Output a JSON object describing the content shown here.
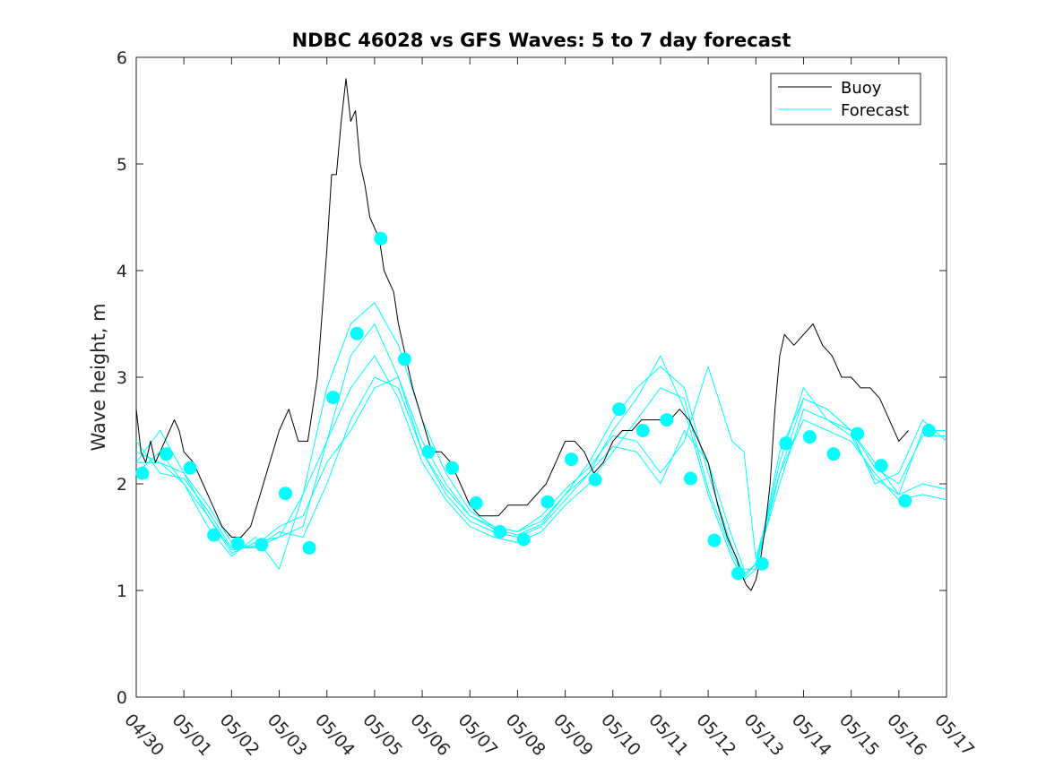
{
  "chart_data": {
    "type": "line",
    "title": "NDBC 46028 vs GFS Waves: 5 to 7 day forecast",
    "xlabel": "",
    "ylabel": "Wave height, m",
    "xlim": [
      0,
      17
    ],
    "ylim": [
      0,
      6
    ],
    "x_tick_labels": [
      "04/30",
      "05/01",
      "05/02",
      "05/03",
      "05/04",
      "05/05",
      "05/06",
      "05/07",
      "05/08",
      "05/09",
      "05/10",
      "05/11",
      "05/12",
      "05/13",
      "05/14",
      "05/15",
      "05/16",
      "05/17"
    ],
    "y_ticks": [
      0,
      1,
      2,
      3,
      4,
      5,
      6
    ],
    "grid": false,
    "legend": {
      "placement": "top-right",
      "entries": [
        "Buoy",
        "Forecast"
      ]
    },
    "colors": {
      "buoy": "#000000",
      "forecast": "#00ffff",
      "axis": "#262626"
    },
    "series": [
      {
        "name": "Buoy",
        "x": [
          0.0,
          0.1,
          0.2,
          0.3,
          0.4,
          0.5,
          0.6,
          0.7,
          0.8,
          0.9,
          1.0,
          1.2,
          1.4,
          1.6,
          1.8,
          2.0,
          2.2,
          2.4,
          2.6,
          2.8,
          3.0,
          3.2,
          3.4,
          3.6,
          3.8,
          4.0,
          4.1,
          4.2,
          4.3,
          4.4,
          4.5,
          4.6,
          4.7,
          4.8,
          4.9,
          5.0,
          5.1,
          5.2,
          5.3,
          5.4,
          5.5,
          5.6,
          5.8,
          6.0,
          6.2,
          6.4,
          6.6,
          6.8,
          7.0,
          7.2,
          7.4,
          7.6,
          7.8,
          8.0,
          8.2,
          8.4,
          8.6,
          8.8,
          9.0,
          9.2,
          9.4,
          9.6,
          9.8,
          10.0,
          10.2,
          10.4,
          10.6,
          10.8,
          11.0,
          11.2,
          11.4,
          11.6,
          11.8,
          12.0,
          12.2,
          12.4,
          12.6,
          12.7,
          12.8,
          12.9,
          13.0,
          13.1,
          13.2,
          13.3,
          13.4,
          13.5,
          13.6,
          13.8,
          14.0,
          14.2,
          14.4,
          14.6,
          14.8,
          15.0,
          15.2,
          15.4,
          15.6,
          15.8,
          16.0,
          16.2
        ],
        "values": [
          2.7,
          2.3,
          2.2,
          2.4,
          2.2,
          2.3,
          2.4,
          2.5,
          2.6,
          2.5,
          2.3,
          2.2,
          2.0,
          1.8,
          1.6,
          1.5,
          1.5,
          1.6,
          1.9,
          2.2,
          2.5,
          2.7,
          2.4,
          2.4,
          3.0,
          4.2,
          4.9,
          4.9,
          5.4,
          5.8,
          5.4,
          5.5,
          5.0,
          4.8,
          4.5,
          4.4,
          4.3,
          4.0,
          3.9,
          3.8,
          3.5,
          3.3,
          2.9,
          2.6,
          2.3,
          2.3,
          2.2,
          2.0,
          1.8,
          1.7,
          1.7,
          1.7,
          1.8,
          1.8,
          1.8,
          1.9,
          2.0,
          2.2,
          2.4,
          2.4,
          2.3,
          2.1,
          2.2,
          2.4,
          2.5,
          2.5,
          2.6,
          2.6,
          2.6,
          2.6,
          2.7,
          2.6,
          2.4,
          2.2,
          1.8,
          1.5,
          1.3,
          1.15,
          1.05,
          1.0,
          1.1,
          1.3,
          1.6,
          2.0,
          2.7,
          3.2,
          3.4,
          3.3,
          3.4,
          3.5,
          3.3,
          3.2,
          3.0,
          3.0,
          2.9,
          2.9,
          2.8,
          2.6,
          2.4,
          2.5
        ]
      },
      {
        "name": "Forecast",
        "x": [
          0.0,
          0.5,
          1.0,
          1.5,
          2.0,
          2.5,
          3.0,
          3.5,
          4.0,
          4.5,
          5.0,
          5.5,
          6.0,
          6.5,
          7.0,
          7.5,
          8.0,
          8.5,
          9.0,
          9.5,
          10.0,
          10.5,
          11.0,
          11.5,
          12.0,
          12.5,
          12.75,
          13.0,
          13.5,
          14.0,
          14.5,
          15.0,
          15.5,
          16.0,
          16.5,
          17.0
        ],
        "values": [
          2.2,
          2.5,
          2.1,
          1.8,
          1.45,
          1.4,
          1.5,
          1.9,
          2.9,
          3.5,
          3.7,
          3.3,
          2.6,
          2.1,
          1.75,
          1.6,
          1.55,
          1.65,
          1.9,
          2.2,
          2.6,
          2.9,
          3.1,
          2.9,
          2.1,
          1.4,
          1.15,
          1.25,
          2.0,
          2.7,
          2.6,
          2.5,
          2.2,
          1.9,
          2.0,
          1.95
        ]
      },
      {
        "name": "",
        "x": [
          0.0,
          0.5,
          1.0,
          1.5,
          2.0,
          2.5,
          3.0,
          3.5,
          4.0,
          4.5,
          5.0,
          5.5,
          6.0,
          6.5,
          7.0,
          7.5,
          8.0,
          8.5,
          9.0,
          9.5,
          10.0,
          10.5,
          11.0,
          11.5,
          12.0,
          12.5,
          12.75,
          13.0,
          13.5,
          14.0,
          14.5,
          15.0,
          15.5,
          16.0,
          16.5,
          17.0
        ],
        "values": [
          2.3,
          2.2,
          2.0,
          1.7,
          1.35,
          1.45,
          1.5,
          1.6,
          2.4,
          3.2,
          3.5,
          3.0,
          2.3,
          1.9,
          1.65,
          1.55,
          1.5,
          1.6,
          1.85,
          2.1,
          2.5,
          2.8,
          3.2,
          2.7,
          1.9,
          1.3,
          1.1,
          1.2,
          2.1,
          2.6,
          2.5,
          2.4,
          2.1,
          1.85,
          1.9,
          1.85
        ]
      },
      {
        "name": "",
        "x": [
          0.0,
          0.5,
          1.0,
          1.5,
          2.0,
          2.5,
          3.0,
          3.5,
          4.0,
          4.5,
          5.0,
          5.5,
          6.0,
          6.5,
          7.0,
          7.5,
          8.0,
          8.5,
          9.0,
          9.5,
          10.0,
          10.5,
          11.0,
          11.5,
          12.0,
          12.5,
          12.75,
          13.0,
          13.5,
          14.0,
          14.5,
          15.0,
          15.5,
          16.0,
          16.5,
          17.0
        ],
        "values": [
          2.1,
          2.3,
          2.0,
          1.6,
          1.32,
          1.5,
          1.2,
          1.9,
          2.4,
          2.9,
          3.2,
          2.8,
          2.2,
          1.85,
          1.6,
          1.5,
          1.45,
          1.55,
          1.8,
          2.0,
          2.3,
          2.6,
          2.9,
          2.8,
          1.95,
          1.35,
          1.12,
          1.25,
          2.2,
          2.9,
          2.6,
          2.45,
          2.05,
          1.9,
          2.5,
          2.5
        ]
      },
      {
        "name": "",
        "x": [
          0.0,
          0.5,
          1.0,
          1.5,
          2.0,
          2.5,
          3.0,
          3.5,
          4.0,
          4.5,
          5.0,
          5.5,
          6.0,
          6.5,
          7.0,
          7.5,
          8.0,
          8.5,
          9.0,
          9.5,
          10.0,
          10.5,
          11.0,
          11.5,
          12.0,
          12.5,
          12.75,
          13.0,
          13.5,
          14.0,
          14.5,
          15.0,
          15.5,
          16.0,
          16.5,
          17.0
        ],
        "values": [
          2.4,
          2.1,
          2.05,
          1.75,
          1.4,
          1.4,
          1.55,
          1.5,
          2.0,
          2.6,
          3.0,
          2.9,
          2.3,
          1.95,
          1.7,
          1.6,
          1.55,
          1.7,
          1.95,
          2.15,
          2.45,
          2.4,
          2.1,
          2.4,
          3.1,
          2.4,
          2.3,
          1.3,
          2.1,
          2.8,
          2.7,
          2.5,
          2.0,
          2.1,
          2.6,
          2.4
        ]
      },
      {
        "name": "",
        "x": [
          0.0,
          0.5,
          1.0,
          1.5,
          2.0,
          2.5,
          3.0,
          3.5,
          4.0,
          4.5,
          5.0,
          5.5,
          6.0,
          6.5,
          7.0,
          7.5,
          8.0,
          8.5,
          9.0,
          9.5,
          10.0,
          10.5,
          11.0,
          11.5,
          12.0,
          12.5,
          12.75,
          13.0,
          13.5,
          14.0,
          14.5,
          15.0,
          15.5,
          16.0,
          16.5,
          17.0
        ],
        "values": [
          2.2,
          2.2,
          2.1,
          1.7,
          1.38,
          1.42,
          1.6,
          1.7,
          2.2,
          2.5,
          2.9,
          3.0,
          2.4,
          2.0,
          1.7,
          1.58,
          1.52,
          1.62,
          1.9,
          2.1,
          2.35,
          2.3,
          2.0,
          2.5,
          2.2,
          1.5,
          1.2,
          1.2,
          2.3,
          2.8,
          2.7,
          2.5,
          2.15,
          2.0,
          2.45,
          2.45
        ]
      }
    ],
    "markers": {
      "name": "Forecast",
      "x": [
        0.13,
        0.63,
        1.13,
        1.63,
        2.13,
        2.63,
        3.13,
        3.63,
        4.13,
        4.63,
        5.13,
        5.63,
        6.13,
        6.63,
        7.13,
        7.63,
        8.13,
        8.63,
        9.13,
        9.63,
        10.13,
        10.63,
        11.13,
        11.63,
        12.13,
        12.63,
        13.13,
        13.63,
        14.13,
        14.63,
        15.13,
        15.63,
        16.13,
        16.63
      ],
      "values": [
        2.1,
        2.28,
        2.15,
        1.52,
        1.44,
        1.43,
        1.91,
        1.4,
        2.81,
        3.41,
        4.3,
        3.17,
        2.3,
        2.15,
        1.82,
        1.55,
        1.48,
        1.83,
        2.23,
        2.04,
        2.7,
        2.5,
        2.6,
        2.05,
        1.47,
        1.16,
        1.25,
        2.38,
        2.44,
        2.28,
        2.47,
        2.17,
        1.84,
        2.5
      ]
    }
  }
}
